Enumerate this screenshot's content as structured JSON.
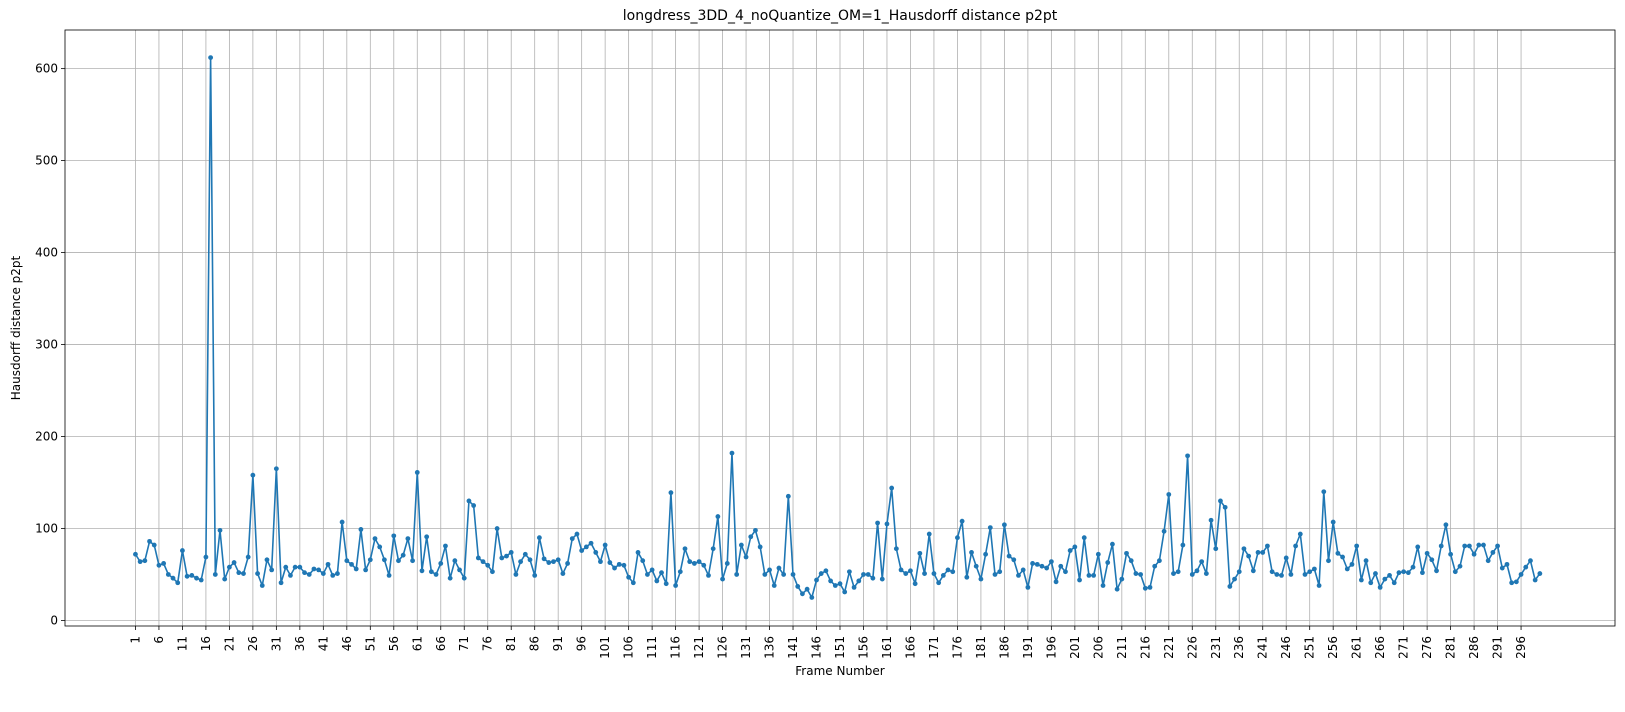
{
  "chart_data": {
    "type": "line",
    "title": "longdress_3DD_4_noQuantize_OM=1_Hausdorff distance p2pt",
    "xlabel": "Frame Number",
    "ylabel": "Hausdorff distance p2pt",
    "xlim": [
      -14,
      316
    ],
    "ylim": [
      -6,
      642
    ],
    "yticks": [
      0,
      100,
      200,
      300,
      400,
      500,
      600
    ],
    "xticks": [
      1,
      6,
      11,
      16,
      21,
      26,
      31,
      36,
      41,
      46,
      51,
      56,
      61,
      66,
      71,
      76,
      81,
      86,
      91,
      96,
      101,
      106,
      111,
      116,
      121,
      126,
      131,
      136,
      141,
      146,
      151,
      156,
      161,
      166,
      171,
      176,
      181,
      186,
      191,
      196,
      201,
      206,
      211,
      216,
      221,
      226,
      231,
      236,
      241,
      246,
      251,
      256,
      261,
      266,
      271,
      276,
      281,
      286,
      291,
      296
    ],
    "grid": true,
    "color": "#1f77b4",
    "series": [
      {
        "x_start": 1,
        "values": [
          72,
          64,
          65,
          86,
          82,
          60,
          62,
          50,
          46,
          41,
          76,
          48,
          49,
          46,
          44,
          69,
          612,
          50,
          98,
          45,
          58,
          63,
          52,
          51,
          69,
          158,
          51,
          38,
          66,
          55,
          165,
          41,
          58,
          49,
          58,
          58,
          52,
          50,
          56,
          55,
          51,
          61,
          49,
          51,
          107,
          65,
          61,
          56,
          99,
          55,
          66,
          89,
          80,
          66,
          49,
          92,
          65,
          71,
          89,
          65,
          161,
          54,
          91,
          53,
          50,
          62,
          81,
          46,
          65,
          55,
          46,
          130,
          125,
          68,
          64,
          60,
          53,
          100,
          68,
          70,
          74,
          50,
          64,
          72,
          66,
          49,
          90,
          67,
          63,
          64,
          66,
          51,
          62,
          89,
          94,
          76,
          80,
          84,
          74,
          64,
          82,
          63,
          57,
          61,
          60,
          47,
          41,
          74,
          65,
          50,
          55,
          43,
          52,
          40,
          139,
          38,
          53,
          78,
          64,
          62,
          64,
          60,
          49,
          78,
          113,
          45,
          62,
          182,
          50,
          82,
          69,
          91,
          98,
          80,
          50,
          55,
          38,
          57,
          50,
          135,
          50,
          37,
          29,
          34,
          25,
          44,
          51,
          54,
          43,
          38,
          40,
          31,
          53,
          36,
          43,
          50,
          50,
          46,
          106,
          45,
          105,
          144,
          78,
          55,
          51,
          54,
          40,
          73,
          51,
          94,
          51,
          41,
          49,
          55,
          53,
          90,
          108,
          47,
          74,
          59,
          45,
          72,
          101,
          50,
          53,
          104,
          70,
          66,
          49,
          55,
          36,
          62,
          61,
          59,
          57,
          64,
          42,
          59,
          53,
          76,
          80,
          44,
          90,
          49,
          49,
          72,
          38,
          63,
          83,
          34,
          45,
          73,
          65,
          51,
          50,
          35,
          36,
          59,
          65,
          97,
          137,
          51,
          53,
          82,
          179,
          50,
          54,
          64,
          51,
          109,
          78,
          130,
          123,
          37,
          45,
          53,
          78,
          70,
          54,
          74,
          74,
          81,
          53,
          50,
          49,
          68,
          50,
          81,
          94,
          50,
          53,
          56,
          38,
          140,
          65,
          107,
          73,
          69,
          56,
          61,
          81,
          44,
          65,
          41,
          51,
          36,
          45,
          49,
          41,
          52,
          53,
          52,
          58,
          80,
          52,
          73,
          66,
          54,
          81,
          104,
          72,
          53,
          59,
          81,
          81,
          72,
          82,
          82,
          65,
          74,
          81,
          57,
          61,
          41,
          42,
          50,
          58,
          65,
          44,
          51
        ]
      }
    ]
  }
}
